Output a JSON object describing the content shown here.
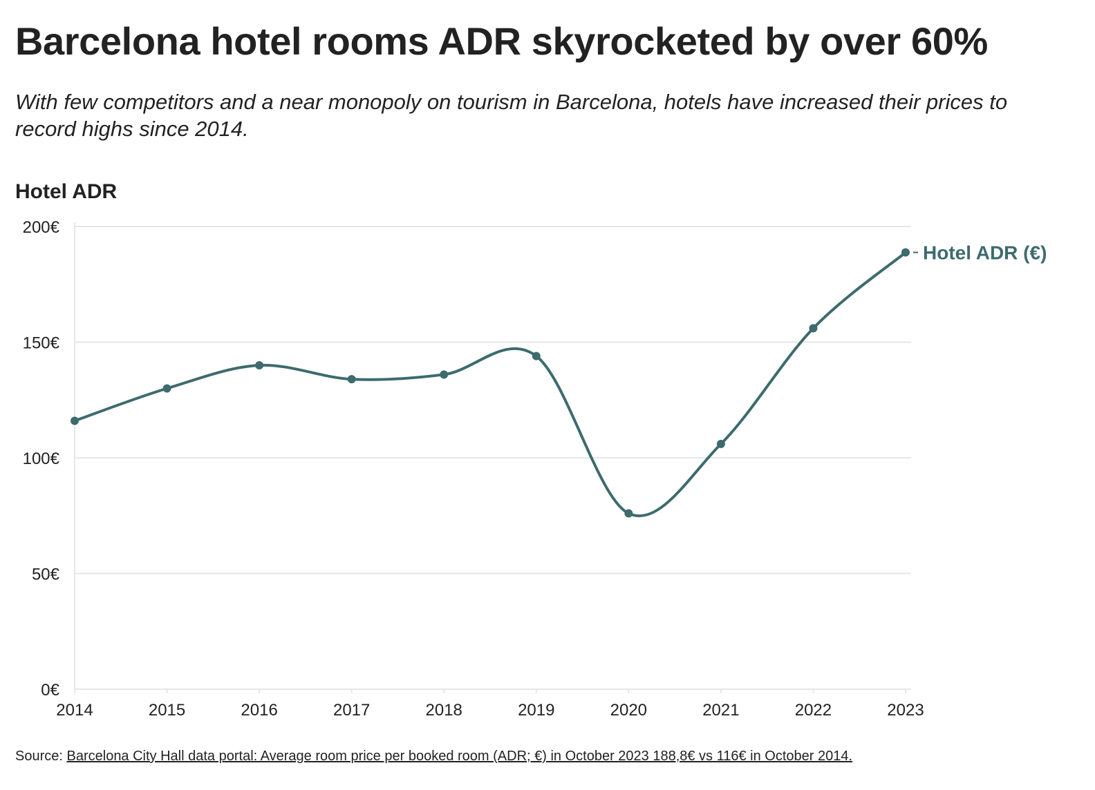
{
  "header": {
    "title": "Barcelona hotel rooms ADR skyrocketed by over 60%",
    "subtitle": "With few competitors and a near monopoly on tourism in Barcelona, hotels have increased their prices to record highs since 2014."
  },
  "footer": {
    "source_label": "Source:",
    "source_link_text": "Barcelona City Hall data portal: Average room price per booked room (ADR; €) in October 2023 188,8€ vs 116€ in October 2014."
  },
  "colors": {
    "series": "#3d6b6e",
    "grid": "#e6e6e6",
    "text": "#222222"
  },
  "chart_data": {
    "type": "line",
    "title": "Hotel ADR",
    "xlabel": "",
    "ylabel": "",
    "x": [
      "2014",
      "2015",
      "2016",
      "2017",
      "2018",
      "2019",
      "2020",
      "2021",
      "2022",
      "2023"
    ],
    "series": [
      {
        "name": "Hotel ADR (€)",
        "values": [
          116,
          130,
          140,
          134,
          136,
          144,
          76,
          106,
          156,
          188.8
        ]
      }
    ],
    "ylim": [
      0,
      200
    ],
    "yticks": [
      0,
      50,
      100,
      150,
      200
    ],
    "ytick_labels": [
      "0€",
      "50€",
      "100€",
      "150€",
      "200€"
    ],
    "grid": true,
    "legend": "direct label at line end",
    "markers": true,
    "curve": "smooth"
  }
}
